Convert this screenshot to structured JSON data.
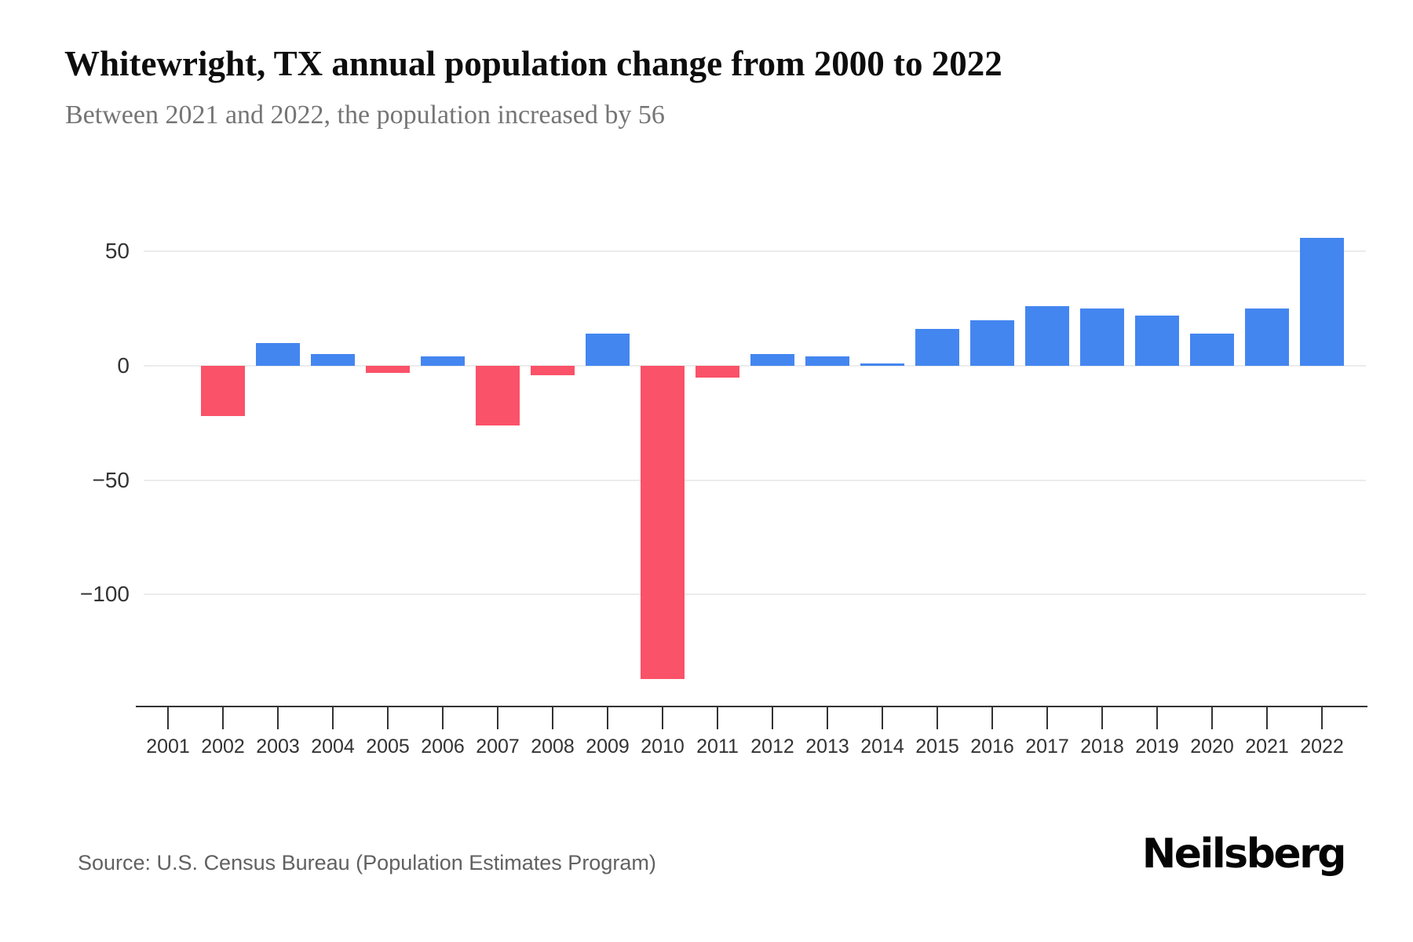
{
  "header": {
    "title": "Whitewright, TX annual population change from 2000 to 2022",
    "subtitle": "Between 2021 and 2022, the population increased by 56"
  },
  "footer": {
    "source": "Source: U.S. Census Bureau (Population Estimates Program)",
    "brand": "Neilsberg"
  },
  "chart_data": {
    "type": "bar",
    "title": "Whitewright, TX annual population change from 2000 to 2022",
    "subtitle": "Between 2021 and 2022, the population increased by 56",
    "xlabel": "",
    "ylabel": "",
    "categories": [
      "2001",
      "2002",
      "2003",
      "2004",
      "2005",
      "2006",
      "2007",
      "2008",
      "2009",
      "2010",
      "2011",
      "2012",
      "2013",
      "2014",
      "2015",
      "2016",
      "2017",
      "2018",
      "2019",
      "2020",
      "2021",
      "2022"
    ],
    "values": [
      0,
      -22,
      10,
      5,
      -3,
      4,
      -26,
      -4,
      14,
      -137,
      -5,
      5,
      4,
      1,
      16,
      20,
      26,
      25,
      22,
      14,
      25,
      56
    ],
    "yticks": [
      50,
      0,
      -50,
      -100
    ],
    "ytick_labels": [
      "50",
      "0",
      "−50",
      "−100"
    ],
    "ylim": [
      -140,
      60
    ],
    "grid": true,
    "legend": false,
    "colors": {
      "positive": "#4486f0",
      "negative": "#fa5268",
      "gridline": "#ececec",
      "axis": "#333333",
      "title_text": "#0d0d0d",
      "subtitle_text": "#757575",
      "source_text": "#616161"
    }
  }
}
